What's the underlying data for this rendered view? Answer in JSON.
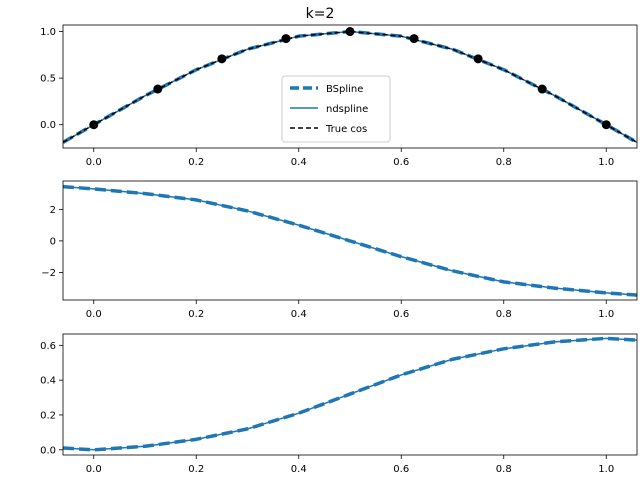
{
  "figure": {
    "title": "k=2"
  },
  "colors": {
    "bspline": "#1f77b4",
    "ndspline": "#1f77b4",
    "true_cos": "#000000",
    "knots": "#000000",
    "axis": "#000000"
  },
  "legend": {
    "placement": "center",
    "entries": [
      {
        "label": "BSpline",
        "style": "thick-dashed"
      },
      {
        "label": "ndspline",
        "style": "solid"
      },
      {
        "label": "True cos",
        "style": "dashed"
      }
    ]
  },
  "chart_data": [
    {
      "type": "line",
      "title": "k=2",
      "xlim": [
        -0.06,
        1.06
      ],
      "ylim": [
        -0.25,
        1.07
      ],
      "xticks": [
        0.0,
        0.2,
        0.4,
        0.6,
        0.8,
        1.0
      ],
      "xtick_labels": [
        "0.0",
        "0.2",
        "0.4",
        "0.6",
        "0.8",
        "1.0"
      ],
      "yticks": [
        0.0,
        0.5,
        1.0
      ],
      "ytick_labels": [
        "0.0",
        "0.5",
        "1.0"
      ],
      "grid": false,
      "legend": "center",
      "series": [
        {
          "name": "BSpline",
          "style": "thick-dashed",
          "x": [
            -0.06,
            0.0,
            0.1,
            0.2,
            0.3,
            0.4,
            0.5,
            0.6,
            0.7,
            0.8,
            0.9,
            1.0,
            1.06
          ],
          "y": [
            -0.19,
            0.0,
            0.31,
            0.59,
            0.81,
            0.95,
            1.0,
            0.95,
            0.81,
            0.59,
            0.31,
            0.0,
            -0.19
          ]
        },
        {
          "name": "ndspline",
          "style": "solid",
          "x": [
            -0.06,
            0.0,
            0.1,
            0.2,
            0.3,
            0.4,
            0.5,
            0.6,
            0.7,
            0.8,
            0.9,
            1.0,
            1.06
          ],
          "y": [
            -0.19,
            0.0,
            0.31,
            0.59,
            0.81,
            0.95,
            1.0,
            0.95,
            0.81,
            0.59,
            0.31,
            0.0,
            -0.19
          ]
        },
        {
          "name": "True cos",
          "style": "dashed",
          "x": [
            -0.06,
            0.0,
            0.1,
            0.2,
            0.3,
            0.4,
            0.5,
            0.6,
            0.7,
            0.8,
            0.9,
            1.0,
            1.06
          ],
          "y": [
            -0.19,
            0.0,
            0.31,
            0.59,
            0.81,
            0.95,
            1.0,
            0.95,
            0.81,
            0.59,
            0.31,
            0.0,
            -0.19
          ]
        }
      ],
      "points": {
        "x": [
          0.0,
          0.125,
          0.25,
          0.375,
          0.5,
          0.625,
          0.75,
          0.875,
          1.0
        ],
        "y": [
          0.0,
          0.383,
          0.707,
          0.924,
          1.0,
          0.924,
          0.707,
          0.383,
          0.0
        ]
      }
    },
    {
      "type": "line",
      "title": "",
      "xlim": [
        -0.06,
        1.06
      ],
      "ylim": [
        -3.75,
        3.8
      ],
      "xticks": [
        0.0,
        0.2,
        0.4,
        0.6,
        0.8,
        1.0
      ],
      "xtick_labels": [
        "0.0",
        "0.2",
        "0.4",
        "0.6",
        "0.8",
        "1.0"
      ],
      "yticks": [
        -2,
        0,
        2
      ],
      "ytick_labels": [
        "−2",
        "0",
        "2"
      ],
      "grid": false,
      "series": [
        {
          "style": "thick-dashed",
          "x": [
            -0.06,
            0.0,
            0.1,
            0.2,
            0.3,
            0.4,
            0.5,
            0.6,
            0.7,
            0.8,
            0.9,
            1.0,
            1.06
          ],
          "y": [
            3.44,
            3.3,
            3.0,
            2.6,
            1.9,
            1.0,
            0.0,
            -1.0,
            -1.9,
            -2.6,
            -3.0,
            -3.3,
            -3.44
          ]
        },
        {
          "style": "solid",
          "x": [
            -0.06,
            0.0,
            0.1,
            0.2,
            0.3,
            0.4,
            0.5,
            0.6,
            0.7,
            0.8,
            0.9,
            1.0,
            1.06
          ],
          "y": [
            3.44,
            3.3,
            3.0,
            2.6,
            1.9,
            1.0,
            0.0,
            -1.0,
            -1.9,
            -2.6,
            -3.0,
            -3.3,
            -3.44
          ]
        }
      ]
    },
    {
      "type": "line",
      "title": "",
      "xlim": [
        -0.06,
        1.06
      ],
      "ylim": [
        -0.03,
        0.665
      ],
      "xticks": [
        0.0,
        0.2,
        0.4,
        0.6,
        0.8,
        1.0
      ],
      "xtick_labels": [
        "0.0",
        "0.2",
        "0.4",
        "0.6",
        "0.8",
        "1.0"
      ],
      "yticks": [
        0.0,
        0.2,
        0.4,
        0.6
      ],
      "ytick_labels": [
        "0.0",
        "0.2",
        "0.4",
        "0.6"
      ],
      "grid": false,
      "series": [
        {
          "style": "thick-dashed",
          "x": [
            -0.06,
            0.0,
            0.1,
            0.2,
            0.3,
            0.4,
            0.5,
            0.6,
            0.7,
            0.8,
            0.9,
            1.0,
            1.06
          ],
          "y": [
            0.01,
            0.0,
            0.02,
            0.06,
            0.12,
            0.21,
            0.32,
            0.43,
            0.52,
            0.58,
            0.62,
            0.64,
            0.63
          ]
        },
        {
          "style": "solid",
          "x": [
            -0.06,
            0.0,
            0.1,
            0.2,
            0.3,
            0.4,
            0.5,
            0.6,
            0.7,
            0.8,
            0.9,
            1.0,
            1.06
          ],
          "y": [
            0.01,
            0.0,
            0.02,
            0.06,
            0.12,
            0.21,
            0.32,
            0.43,
            0.52,
            0.58,
            0.62,
            0.64,
            0.63
          ]
        }
      ]
    }
  ]
}
